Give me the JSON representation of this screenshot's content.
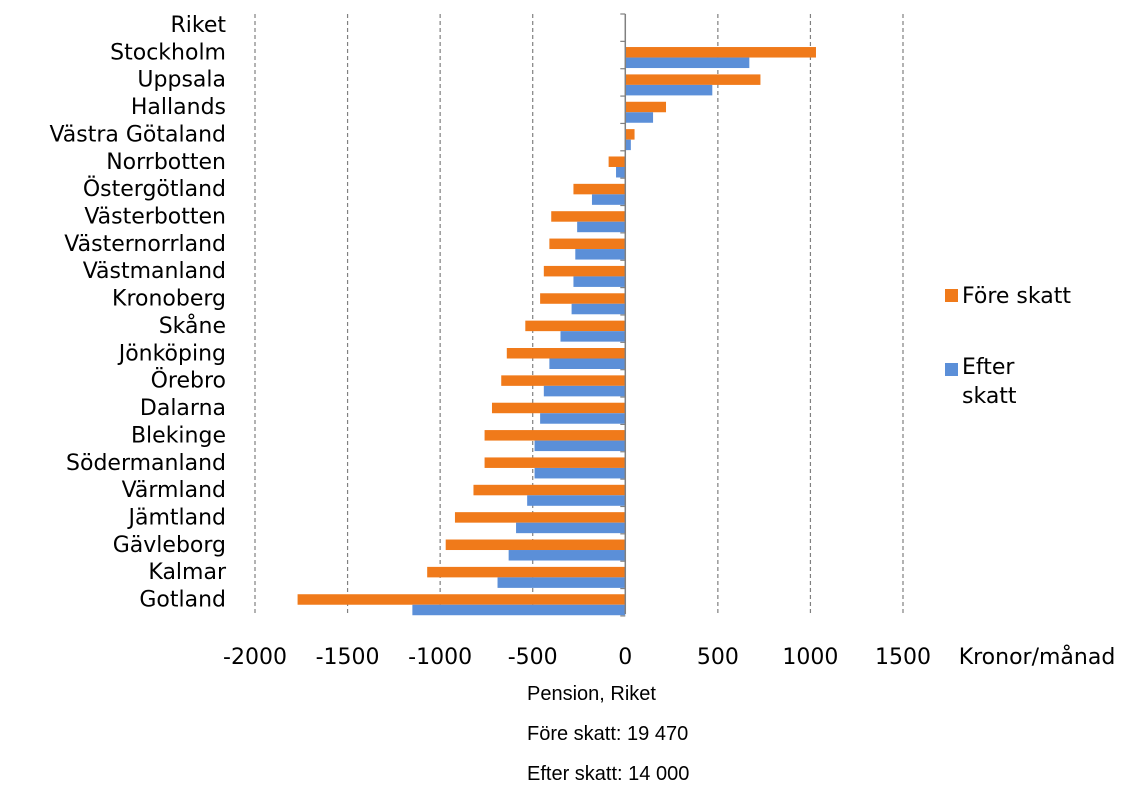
{
  "colors": {
    "before_tax": "#F07A1A",
    "after_tax": "#5B8FD8",
    "grid": "#808080",
    "axis": "#808080",
    "text": "#000000"
  },
  "chart_data": {
    "type": "bar",
    "orientation": "horizontal",
    "categories": [
      "Riket",
      "Stockholm",
      "Uppsala",
      "Hallands",
      "Västra Götaland",
      "Norrbotten",
      "Östergötland",
      "Västerbotten",
      "Västernorrland",
      "Västmanland",
      "Kronoberg",
      "Skåne",
      "Jönköping",
      "Örebro",
      "Dalarna",
      "Blekinge",
      "Södermanland",
      "Värmland",
      "Jämtland",
      "Gävleborg",
      "Kalmar",
      "Gotland"
    ],
    "series": [
      {
        "name": "Före skatt",
        "color": "#F07A1A",
        "values": [
          0,
          1030,
          730,
          220,
          50,
          -90,
          -280,
          -400,
          -410,
          -440,
          -460,
          -540,
          -640,
          -670,
          -720,
          -760,
          -760,
          -820,
          -920,
          -970,
          -1070,
          -1770
        ]
      },
      {
        "name": "Efter skatt",
        "color": "#5B8FD8",
        "values": [
          0,
          670,
          470,
          150,
          30,
          -50,
          -180,
          -260,
          -270,
          -280,
          -290,
          -350,
          -410,
          -440,
          -460,
          -490,
          -490,
          -530,
          -590,
          -630,
          -690,
          -1150
        ]
      }
    ],
    "xlim": [
      -2000,
      1500
    ],
    "xticks": [
      -2000,
      -1500,
      -1000,
      -500,
      0,
      500,
      1000,
      1500
    ],
    "xtick_labels": [
      "-2000",
      "-1500",
      "-1000",
      "-500",
      "0",
      "500",
      "1000",
      "1500"
    ],
    "x_unit": "Kronor/månad",
    "grid": true,
    "legend": {
      "position": "right",
      "entries": [
        "Före skatt",
        "Efter skatt"
      ]
    }
  },
  "note": {
    "line1": "Pension, Riket",
    "line2": "Före skatt: 19 470",
    "line3": "Efter skatt: 14 000"
  }
}
